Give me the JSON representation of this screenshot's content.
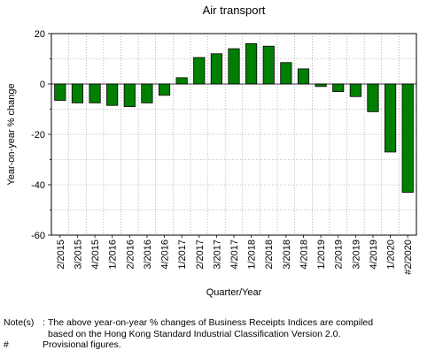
{
  "chart_data": {
    "type": "bar",
    "title": "Air transport",
    "xlabel": "Quarter/Year",
    "ylabel": "Year-on-year % change",
    "ylim": [
      -60,
      20
    ],
    "yticks": [
      20,
      0,
      -20,
      -40,
      -60
    ],
    "grid": true,
    "bar_color": "#008000",
    "categories": [
      "2/2015",
      "3/2015",
      "4/2015",
      "1/2016",
      "2/2016",
      "3/2016",
      "4/2016",
      "1/2017",
      "2/2017",
      "3/2017",
      "4/2017",
      "1/2018",
      "2/2018",
      "3/2018",
      "4/2018",
      "1/2019",
      "2/2019",
      "3/2019",
      "4/2019",
      "1/2020",
      "#2/2020"
    ],
    "values": [
      -6.5,
      -7.5,
      -7.5,
      -8.5,
      -9,
      -7.5,
      -4.5,
      2.5,
      10.5,
      12,
      14,
      16,
      15,
      8.5,
      6,
      -1,
      -3,
      -5,
      -11,
      -27,
      -43
    ]
  },
  "notes": {
    "label": "Note(s)",
    "line1": "The above year-on-year % changes of Business Receipts Indices are compiled",
    "line2": "based on the Hong Kong Standard Industrial Classification Version 2.0.",
    "hash_label": "#",
    "hash_text": "Provisional figures."
  }
}
